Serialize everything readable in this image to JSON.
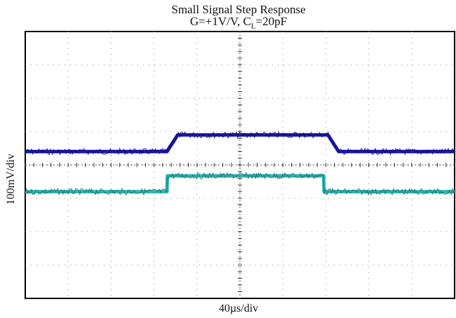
{
  "chart_data": {
    "type": "line",
    "title": "Small Signal Step Response",
    "subtitle_prefix": "G=+1V/V, C",
    "subtitle_sub": "L",
    "subtitle_suffix": "=20pF",
    "xlabel": "40µs/div",
    "ylabel": "100mV/div",
    "x_divisions": 10,
    "y_divisions": 8,
    "grid": true,
    "series": [
      {
        "color": "#1b1aa8",
        "x": [
          0,
          3.3,
          3.55,
          7.05,
          7.3,
          10
        ],
        "y": [
          1.6,
          1.6,
          3.6,
          3.6,
          1.6,
          1.6
        ]
      },
      {
        "color": "#2ab7b1",
        "x": [
          0,
          3.3,
          3.31,
          6.95,
          6.96,
          10
        ],
        "y": [
          -3.2,
          -3.2,
          -1.3,
          -1.3,
          -3.2,
          -3.2
        ]
      }
    ]
  }
}
